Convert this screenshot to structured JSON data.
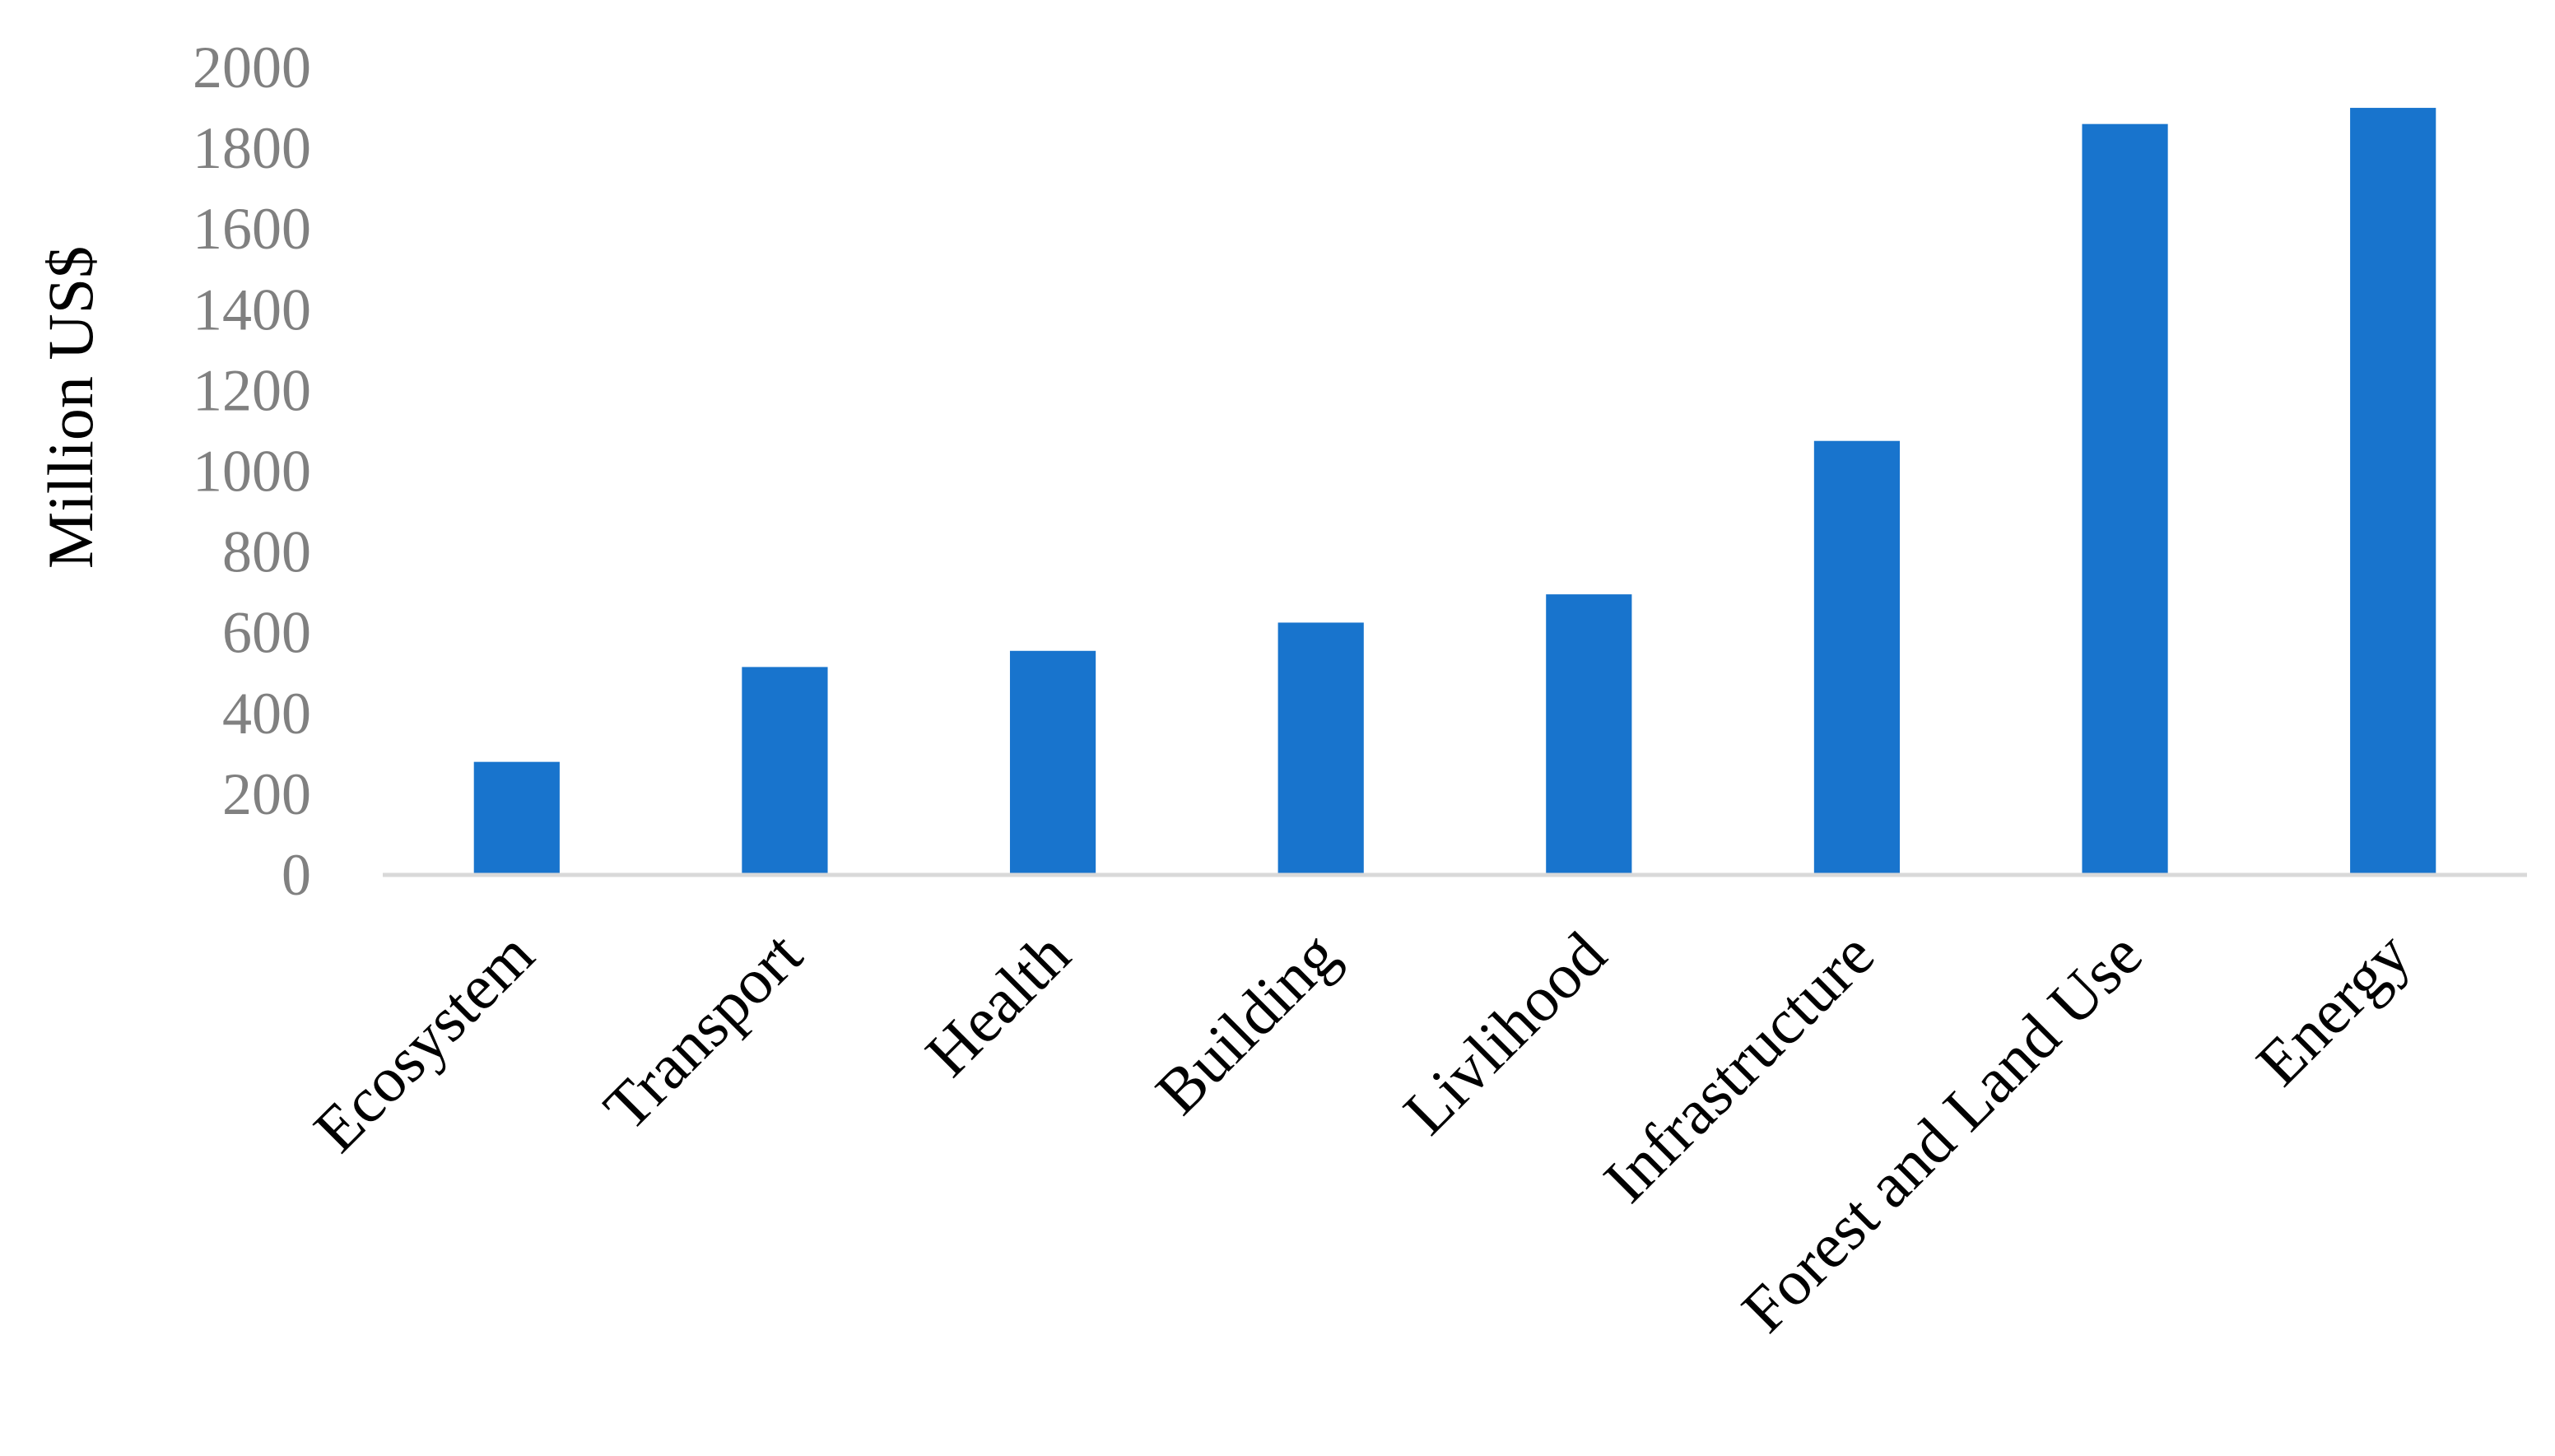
{
  "chart_data": {
    "type": "bar",
    "title": "",
    "xlabel": "",
    "ylabel": "Million US$",
    "ylim": [
      0,
      2000
    ],
    "yticks": [
      0,
      200,
      400,
      600,
      800,
      1000,
      1200,
      1400,
      1600,
      1800,
      2000
    ],
    "categories": [
      "Ecosystem",
      "Transport",
      "Health",
      "Building",
      "Livlihood",
      "Infrastructure",
      "Forest and Land Use",
      "Energy"
    ],
    "values": [
      280,
      515,
      555,
      625,
      695,
      1075,
      1860,
      1900
    ],
    "grid": false,
    "legend": "none",
    "bar_color": "#1874CD",
    "axis_color": "#D9D9D9"
  }
}
